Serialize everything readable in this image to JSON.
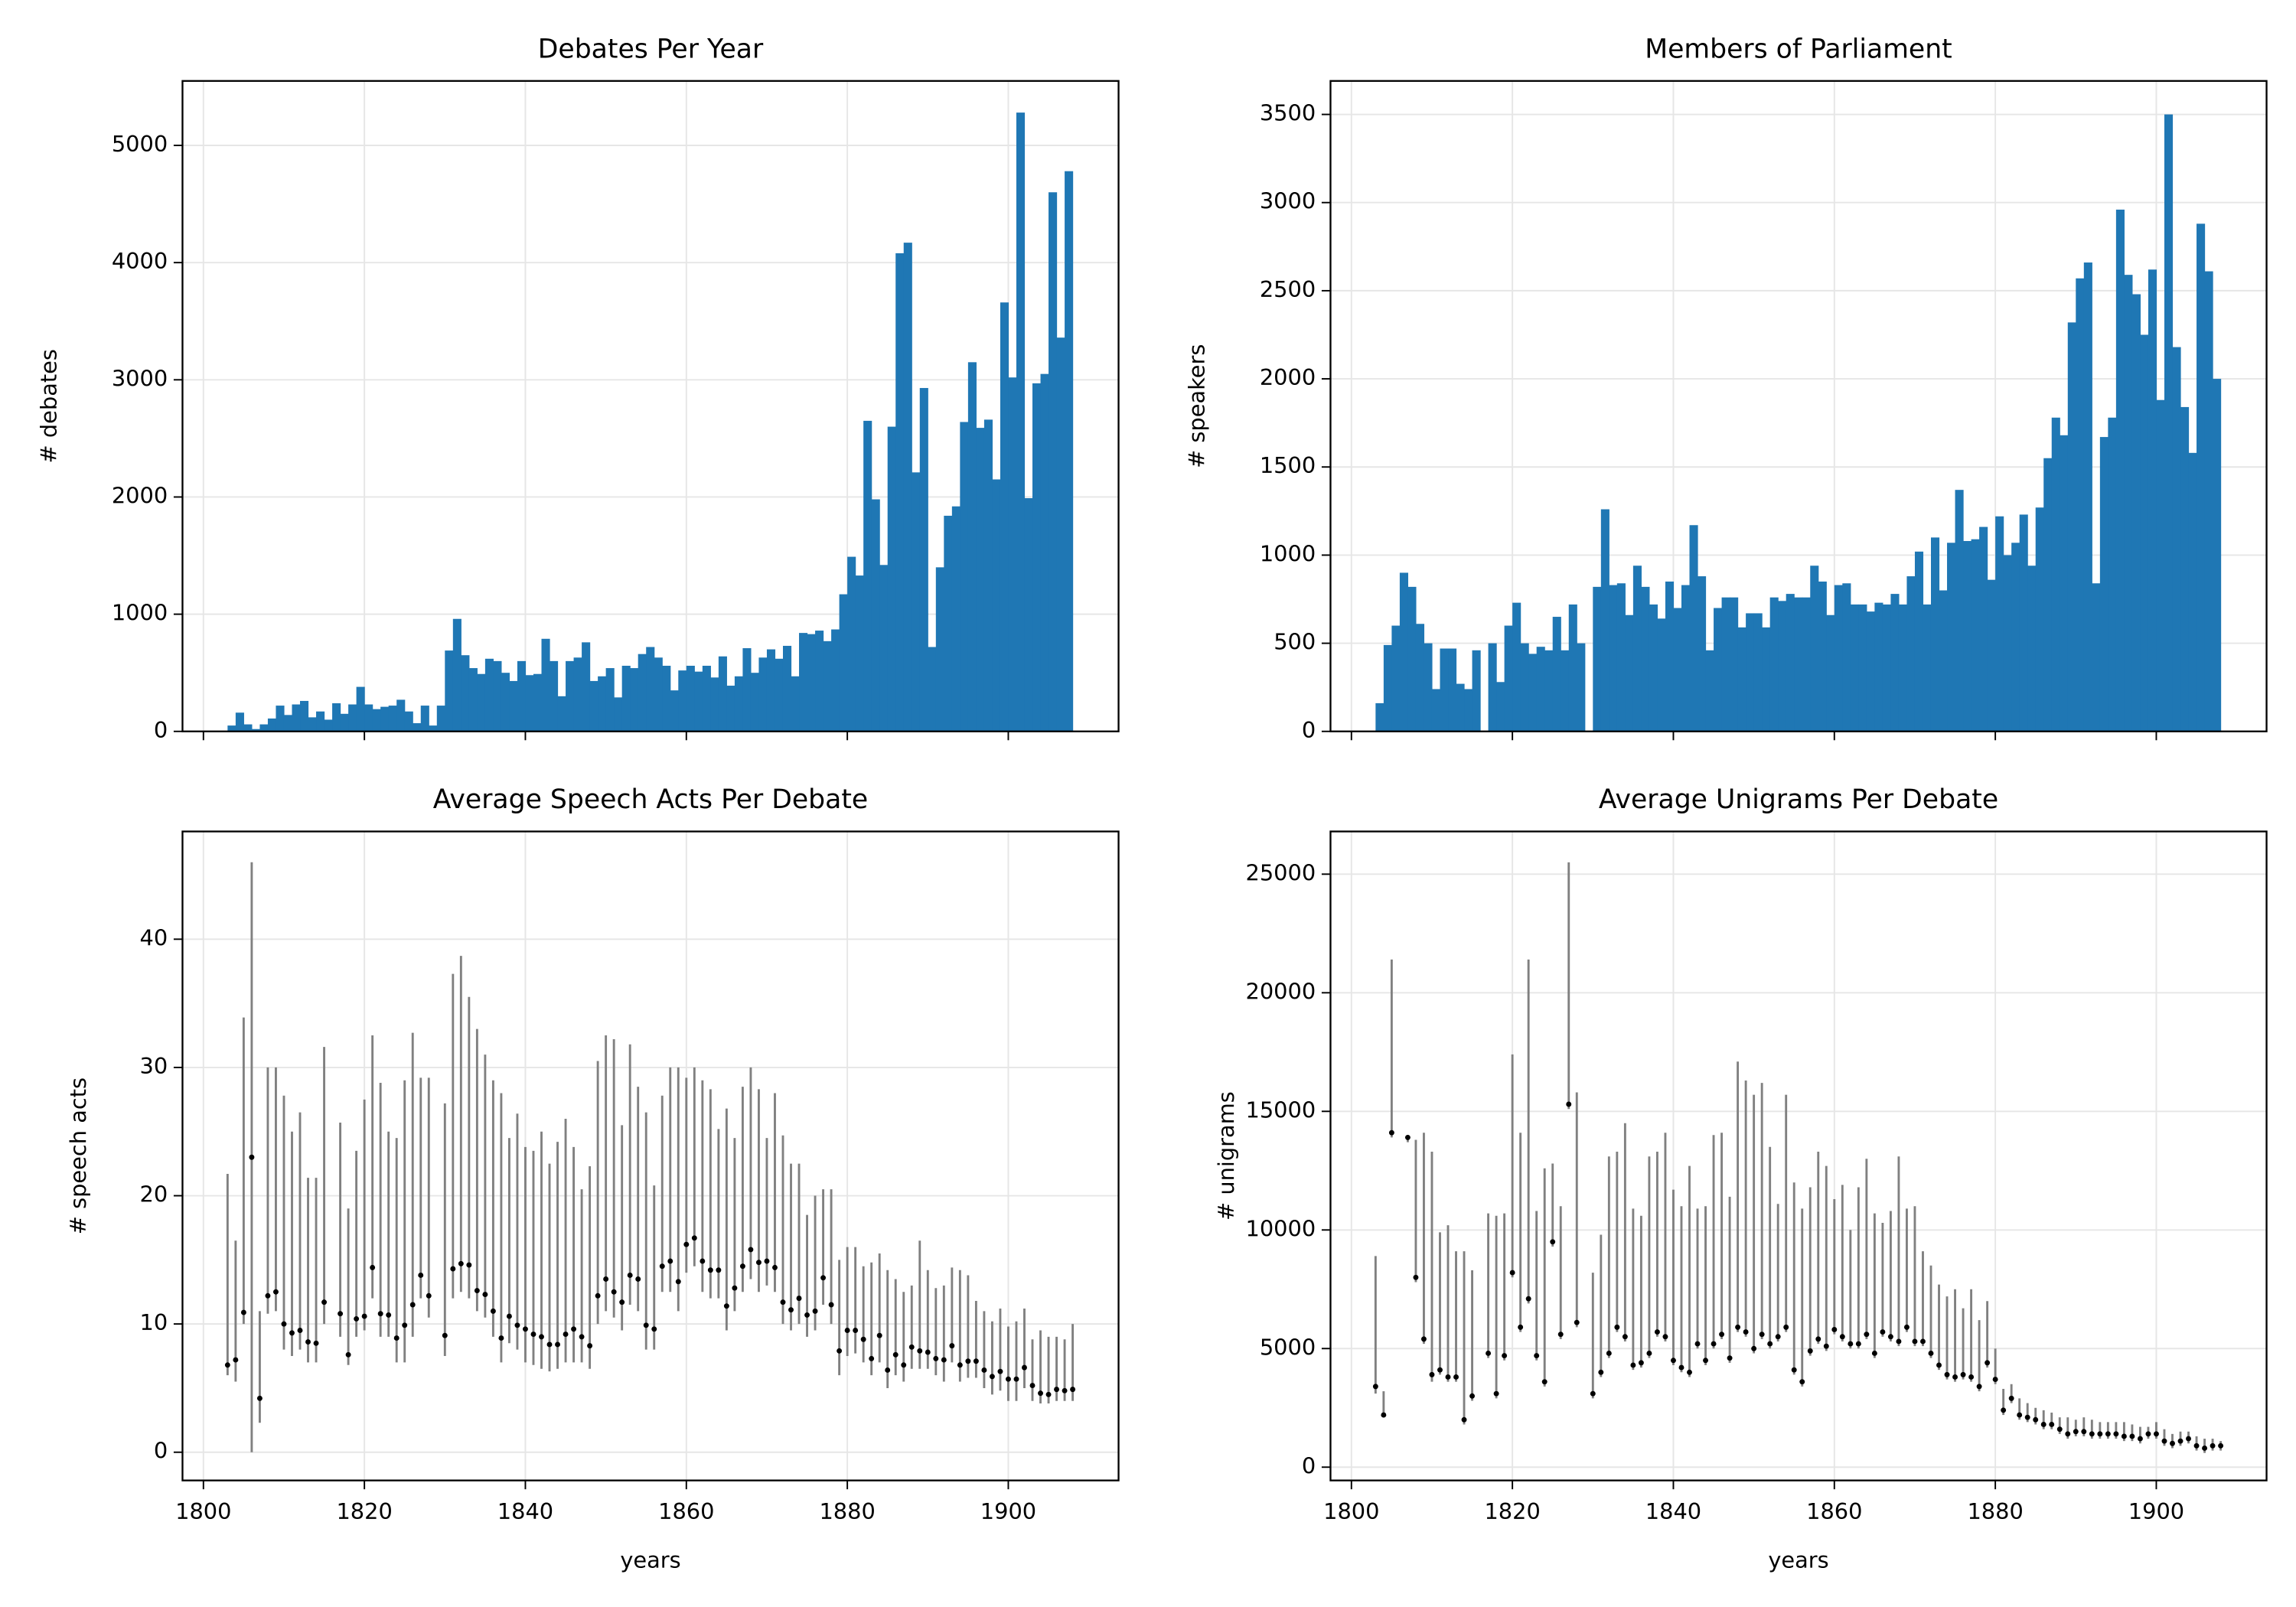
{
  "chart_data": [
    {
      "type": "histogram",
      "title": "Debates Per Year",
      "ylabel": "# debates",
      "color": "#1f77b4",
      "grid": true,
      "xtick_labels": false,
      "xlim": [
        1797.4,
        1913.7
      ],
      "xticks": [
        1800,
        1820,
        1840,
        1860,
        1880,
        1900
      ],
      "ylim": [
        0,
        5550
      ],
      "yticks": [
        0,
        1000,
        2000,
        3000,
        4000,
        5000
      ],
      "bins": [
        1803,
        1804,
        1805,
        1806,
        1807,
        1808,
        1809,
        1810,
        1811,
        1812,
        1813,
        1814,
        1815,
        1816,
        1817,
        1818,
        1819,
        1820,
        1821,
        1822,
        1823,
        1824,
        1825,
        1826,
        1827,
        1828,
        1829,
        1830,
        1831,
        1832,
        1833,
        1834,
        1835,
        1836,
        1837,
        1838,
        1839,
        1840,
        1841,
        1842,
        1843,
        1844,
        1845,
        1846,
        1847,
        1848,
        1849,
        1850,
        1851,
        1852,
        1853,
        1854,
        1855,
        1856,
        1857,
        1858,
        1859,
        1860,
        1861,
        1862,
        1863,
        1864,
        1865,
        1866,
        1867,
        1868,
        1869,
        1870,
        1871,
        1872,
        1873,
        1874,
        1875,
        1876,
        1877,
        1878,
        1879,
        1880,
        1881,
        1882,
        1883,
        1884,
        1885,
        1886,
        1887,
        1888,
        1889,
        1890,
        1891,
        1892,
        1893,
        1894,
        1895,
        1896,
        1897,
        1898,
        1899,
        1900,
        1901,
        1902,
        1903,
        1904,
        1905,
        1906,
        1907,
        1908
      ],
      "values": [
        50,
        160,
        60,
        20,
        60,
        110,
        220,
        140,
        230,
        260,
        120,
        170,
        100,
        240,
        150,
        230,
        380,
        230,
        190,
        210,
        220,
        270,
        170,
        70,
        220,
        50,
        220,
        690,
        960,
        650,
        540,
        490,
        620,
        600,
        500,
        430,
        600,
        480,
        490,
        790,
        600,
        300,
        600,
        630,
        760,
        430,
        470,
        540,
        290,
        560,
        540,
        660,
        720,
        630,
        560,
        350,
        520,
        560,
        510,
        560,
        460,
        640,
        390,
        470,
        710,
        500,
        630,
        700,
        620,
        730,
        470,
        840,
        830,
        860,
        770,
        870,
        1170,
        1490,
        1330,
        2650,
        1980,
        1420,
        2600,
        4080,
        4170,
        2210,
        2930,
        720,
        1400,
        1840,
        1920,
        2640,
        3150,
        2590,
        2660,
        2150,
        3660,
        3020,
        5280,
        1990,
        2970,
        3050,
        4600,
        3360,
        4780
      ]
    },
    {
      "type": "histogram",
      "title": "Members of Parliament",
      "ylabel": "# speakers",
      "color": "#1f77b4",
      "grid": true,
      "xtick_labels": false,
      "xlim": [
        1797.4,
        1913.7
      ],
      "xticks": [
        1800,
        1820,
        1840,
        1860,
        1880,
        1900
      ],
      "ylim": [
        0,
        3690
      ],
      "yticks": [
        0,
        500,
        1000,
        1500,
        2000,
        2500,
        3000,
        3500
      ],
      "bins": [
        1803,
        1804,
        1805,
        1806,
        1807,
        1808,
        1809,
        1810,
        1811,
        1812,
        1813,
        1814,
        1815,
        1816,
        1817,
        1818,
        1819,
        1820,
        1821,
        1822,
        1823,
        1824,
        1825,
        1826,
        1827,
        1828,
        1829,
        1830,
        1831,
        1832,
        1833,
        1834,
        1835,
        1836,
        1837,
        1838,
        1839,
        1840,
        1841,
        1842,
        1843,
        1844,
        1845,
        1846,
        1847,
        1848,
        1849,
        1850,
        1851,
        1852,
        1853,
        1854,
        1855,
        1856,
        1857,
        1858,
        1859,
        1860,
        1861,
        1862,
        1863,
        1864,
        1865,
        1866,
        1867,
        1868,
        1869,
        1870,
        1871,
        1872,
        1873,
        1874,
        1875,
        1876,
        1877,
        1878,
        1879,
        1880,
        1881,
        1882,
        1883,
        1884,
        1885,
        1886,
        1887,
        1888,
        1889,
        1890,
        1891,
        1892,
        1893,
        1894,
        1895,
        1896,
        1897,
        1898,
        1899,
        1900,
        1901,
        1902,
        1903,
        1904,
        1905,
        1906,
        1907,
        1908
      ],
      "values": [
        160,
        490,
        600,
        900,
        820,
        610,
        500,
        240,
        470,
        470,
        270,
        240,
        460,
        0,
        500,
        280,
        600,
        730,
        500,
        440,
        480,
        460,
        650,
        460,
        720,
        500,
        0,
        820,
        1260,
        830,
        840,
        660,
        940,
        820,
        720,
        640,
        850,
        700,
        830,
        1170,
        880,
        460,
        700,
        760,
        760,
        590,
        670,
        670,
        590,
        760,
        740,
        780,
        760,
        760,
        940,
        850,
        660,
        830,
        840,
        720,
        720,
        680,
        730,
        720,
        780,
        720,
        880,
        1020,
        720,
        1100,
        800,
        1070,
        1370,
        1080,
        1090,
        1160,
        860,
        1220,
        1000,
        1070,
        1230,
        940,
        1270,
        1550,
        1780,
        1680,
        2320,
        2570,
        2660,
        840,
        1670,
        1780,
        2960,
        2590,
        2480,
        2250,
        2620,
        1880,
        3500,
        2180,
        1840,
        1580,
        2880,
        2610,
        2000
      ]
    },
    {
      "type": "errorbar",
      "title": "Average Speech Acts Per Debate",
      "ylabel": "# speech acts",
      "xlabel": "years",
      "color": "#000000",
      "ecolor": "#808080",
      "grid": true,
      "xlim": [
        1797.4,
        1913.7
      ],
      "xticks": [
        1800,
        1820,
        1840,
        1860,
        1880,
        1900
      ],
      "ylim": [
        -2.2,
        48.4
      ],
      "yticks": [
        0,
        10,
        20,
        30,
        40
      ],
      "x": [
        1803,
        1804,
        1805,
        1806,
        1807,
        1808,
        1809,
        1810,
        1811,
        1812,
        1813,
        1814,
        1815,
        1817,
        1818,
        1819,
        1820,
        1821,
        1822,
        1823,
        1824,
        1825,
        1826,
        1827,
        1828,
        1830,
        1831,
        1832,
        1833,
        1834,
        1835,
        1836,
        1837,
        1838,
        1839,
        1840,
        1841,
        1842,
        1843,
        1844,
        1845,
        1846,
        1847,
        1848,
        1849,
        1850,
        1851,
        1852,
        1853,
        1854,
        1855,
        1856,
        1857,
        1858,
        1859,
        1860,
        1861,
        1862,
        1863,
        1864,
        1865,
        1866,
        1867,
        1868,
        1869,
        1870,
        1871,
        1872,
        1873,
        1874,
        1875,
        1876,
        1877,
        1878,
        1879,
        1880,
        1881,
        1882,
        1883,
        1884,
        1885,
        1886,
        1887,
        1888,
        1889,
        1890,
        1891,
        1892,
        1893,
        1894,
        1895,
        1896,
        1897,
        1898,
        1899,
        1900,
        1901,
        1902,
        1903,
        1904,
        1905,
        1906,
        1907,
        1908
      ],
      "values": [
        6.8,
        7.2,
        10.9,
        23,
        4.2,
        12.2,
        12.5,
        10,
        9.3,
        9.5,
        8.6,
        8.5,
        11.7,
        10.8,
        7.6,
        10.4,
        10.6,
        14.4,
        10.8,
        10.7,
        8.9,
        9.9,
        11.5,
        13.8,
        12.2,
        9.1,
        14.3,
        14.7,
        14.6,
        12.6,
        12.3,
        11.0,
        8.9,
        10.6,
        9.9,
        9.6,
        9.2,
        9.0,
        8.4,
        8.4,
        9.2,
        9.6,
        9.0,
        8.3,
        12.2,
        13.5,
        12.5,
        11.7,
        13.8,
        13.5,
        9.9,
        9.6,
        14.5,
        14.9,
        13.3,
        16.2,
        16.7,
        14.9,
        14.2,
        14.2,
        11.4,
        12.8,
        14.5,
        15.8,
        14.8,
        14.9,
        14.4,
        11.7,
        11.1,
        12.0,
        10.7,
        11.0,
        13.6,
        11.5,
        7.9,
        9.5,
        9.5,
        8.8,
        7.3,
        9.1,
        6.4,
        7.6,
        6.8,
        8.2,
        7.9,
        7.8,
        7.3,
        7.2,
        8.3,
        6.8,
        7.1,
        7.1,
        6.4,
        5.9,
        6.3,
        5.7,
        5.7,
        6.6,
        5.2,
        4.6,
        4.5,
        4.9,
        4.8,
        4.9
      ],
      "lower": [
        6,
        5.5,
        10,
        0,
        2.3,
        10.8,
        11,
        8,
        7.5,
        8,
        7,
        7,
        10,
        9,
        6.8,
        9,
        9.5,
        12,
        9,
        9,
        7,
        7,
        9,
        12,
        10.5,
        7.5,
        12,
        12.5,
        12,
        11,
        10.5,
        9,
        7,
        8.5,
        8,
        7,
        6.8,
        6.5,
        6.3,
        6.5,
        7,
        7,
        7,
        6.5,
        10,
        11,
        10.5,
        9.5,
        11.5,
        11,
        8,
        8,
        12.5,
        12.5,
        11,
        14,
        14.5,
        12.5,
        12,
        12,
        9.5,
        11,
        12.5,
        13.5,
        12.5,
        13,
        12.5,
        10,
        9.5,
        10,
        9,
        9.5,
        11.5,
        10,
        6,
        7.5,
        7.7,
        7,
        6,
        7,
        5,
        6,
        5.5,
        6.5,
        6.5,
        6.5,
        6,
        5.5,
        7,
        5.5,
        5.8,
        5.8,
        5,
        4.5,
        4.8,
        4,
        4,
        5,
        4,
        3.8,
        3.8,
        4,
        4,
        4
      ],
      "upper": [
        21.7,
        16.5,
        33.9,
        46,
        11,
        30,
        30,
        27.8,
        25,
        26.5,
        21.4,
        21.4,
        31.6,
        25.7,
        19,
        23.5,
        27.5,
        32.5,
        28.8,
        25,
        24.5,
        29,
        32.7,
        29.2,
        29.2,
        27.2,
        37.3,
        38.7,
        35.5,
        33,
        31,
        29,
        28,
        24.5,
        26.4,
        23.8,
        23.5,
        25,
        22.5,
        24.2,
        26,
        23.8,
        20.5,
        22.3,
        30.5,
        32.5,
        32.2,
        25.5,
        31.8,
        28.5,
        26.5,
        20.8,
        27.8,
        30,
        30,
        29.2,
        30,
        29,
        28.3,
        25.2,
        26.8,
        24.5,
        28.5,
        30,
        28.3,
        24.5,
        28,
        24.7,
        22.5,
        22.5,
        18.5,
        20,
        20.5,
        20.5,
        15,
        16,
        16,
        14.5,
        14.8,
        15.5,
        14.2,
        13.5,
        12.5,
        13,
        16.5,
        14.2,
        12.8,
        13,
        14.4,
        14.2,
        13.8,
        11.8,
        11,
        10.2,
        11.2,
        9.8,
        10.2,
        11.2,
        8.8,
        9.5,
        9,
        9,
        8.8,
        10
      ]
    },
    {
      "type": "errorbar",
      "title": "Average Unigrams Per Debate",
      "ylabel": "# unigrams",
      "xlabel": "years",
      "color": "#000000",
      "ecolor": "#808080",
      "grid": true,
      "xlim": [
        1797.4,
        1913.7
      ],
      "xticks": [
        1800,
        1820,
        1840,
        1860,
        1880,
        1900
      ],
      "ylim": [
        -560,
        26800
      ],
      "yticks": [
        0,
        5000,
        10000,
        15000,
        20000,
        25000
      ],
      "x": [
        1803,
        1804,
        1805,
        1807,
        1808,
        1809,
        1810,
        1811,
        1812,
        1813,
        1814,
        1815,
        1817,
        1818,
        1819,
        1820,
        1821,
        1822,
        1823,
        1824,
        1825,
        1826,
        1827,
        1828,
        1830,
        1831,
        1832,
        1833,
        1834,
        1835,
        1836,
        1837,
        1838,
        1839,
        1840,
        1841,
        1842,
        1843,
        1844,
        1845,
        1846,
        1847,
        1848,
        1849,
        1850,
        1851,
        1852,
        1853,
        1854,
        1855,
        1856,
        1857,
        1858,
        1859,
        1860,
        1861,
        1862,
        1863,
        1864,
        1865,
        1866,
        1867,
        1868,
        1869,
        1870,
        1871,
        1872,
        1873,
        1874,
        1875,
        1876,
        1877,
        1878,
        1879,
        1880,
        1881,
        1882,
        1883,
        1884,
        1885,
        1886,
        1887,
        1888,
        1889,
        1890,
        1891,
        1892,
        1893,
        1894,
        1895,
        1896,
        1897,
        1898,
        1899,
        1900,
        1901,
        1902,
        1903,
        1904,
        1905,
        1906,
        1907,
        1908
      ],
      "values": [
        3400,
        2200,
        14100,
        13900,
        8000,
        5400,
        3900,
        4100,
        3800,
        3800,
        2000,
        3000,
        4800,
        3100,
        4700,
        8200,
        5900,
        7100,
        4700,
        3600,
        9500,
        5600,
        15300,
        6100,
        3100,
        4000,
        4800,
        5900,
        5500,
        4300,
        4400,
        4800,
        5700,
        5500,
        4500,
        4200,
        4000,
        5200,
        4500,
        5200,
        5600,
        4600,
        5900,
        5700,
        5000,
        5600,
        5200,
        5500,
        5900,
        4100,
        3600,
        4900,
        5400,
        5100,
        5800,
        5500,
        5200,
        5200,
        5600,
        4800,
        5700,
        5500,
        5300,
        5900,
        5300,
        5300,
        4800,
        4300,
        3900,
        3800,
        3900,
        3800,
        3400,
        4400,
        3700,
        2400,
        2900,
        2200,
        2100,
        2000,
        1800,
        1800,
        1600,
        1400,
        1500,
        1500,
        1400,
        1400,
        1400,
        1400,
        1300,
        1300,
        1200,
        1400,
        1400,
        1100,
        1000,
        1100,
        1200,
        900,
        800,
        900,
        900
      ],
      "lower": [
        3100,
        2100,
        13900,
        13700,
        7800,
        5200,
        3600,
        3900,
        3600,
        3600,
        1800,
        2800,
        4600,
        2900,
        4500,
        8000,
        5700,
        6900,
        4500,
        3400,
        9300,
        5400,
        15100,
        5900,
        2900,
        3800,
        4600,
        5700,
        5300,
        4100,
        4200,
        4600,
        5500,
        5300,
        4300,
        4000,
        3800,
        5000,
        4300,
        5000,
        5400,
        4400,
        5700,
        5500,
        4800,
        5400,
        5000,
        5300,
        5700,
        3900,
        3400,
        4700,
        5200,
        4900,
        5600,
        5300,
        5000,
        5000,
        5400,
        4600,
        5500,
        5300,
        5100,
        5700,
        5100,
        5100,
        4600,
        4100,
        3700,
        3600,
        3700,
        3600,
        3200,
        4200,
        3500,
        2200,
        2700,
        2000,
        1900,
        1800,
        1600,
        1600,
        1400,
        1200,
        1300,
        1300,
        1200,
        1200,
        1200,
        1200,
        1100,
        1100,
        1000,
        1200,
        1200,
        900,
        800,
        900,
        1000,
        700,
        600,
        700,
        700
      ],
      "upper": [
        8900,
        3200,
        21400,
        14000,
        13800,
        14100,
        13300,
        9900,
        10200,
        9100,
        9100,
        8300,
        10700,
        10600,
        10700,
        17400,
        14100,
        21400,
        10800,
        12600,
        12800,
        11000,
        25500,
        15800,
        8200,
        9800,
        13100,
        13300,
        14500,
        10900,
        10600,
        13100,
        13300,
        14100,
        11700,
        11000,
        12700,
        10900,
        11000,
        14000,
        14100,
        11400,
        17100,
        16300,
        15700,
        16200,
        13500,
        11100,
        15700,
        12000,
        10900,
        11800,
        13300,
        12700,
        11300,
        11900,
        10000,
        11800,
        13000,
        10700,
        10300,
        10800,
        13100,
        10900,
        11000,
        9100,
        8500,
        7700,
        7200,
        7500,
        6700,
        7500,
        6200,
        7000,
        5000,
        3300,
        3500,
        2900,
        2700,
        2500,
        2400,
        2300,
        2100,
        2100,
        2000,
        2100,
        2000,
        1900,
        1900,
        1900,
        1900,
        1800,
        1700,
        1700,
        1900,
        1600,
        1400,
        1500,
        1500,
        1300,
        1200,
        1200,
        1100
      ]
    }
  ]
}
